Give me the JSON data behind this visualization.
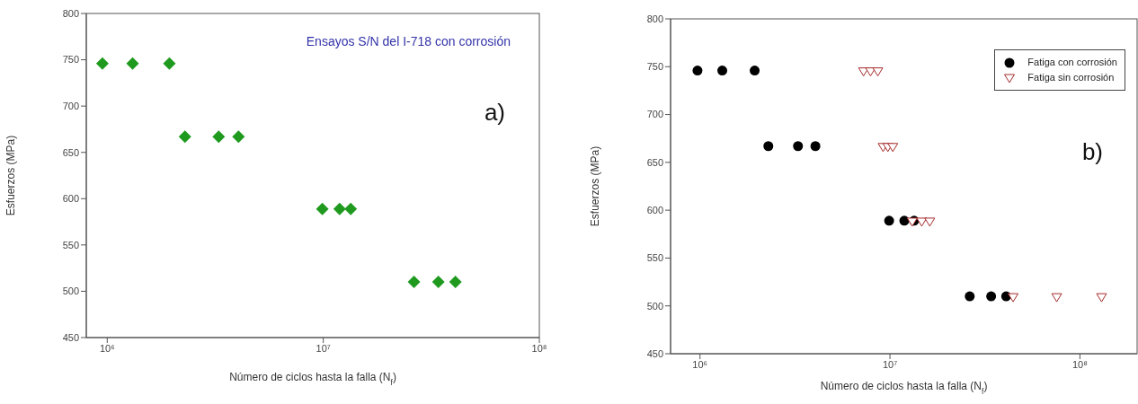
{
  "chart_data": [
    {
      "type": "scatter",
      "xlabel": "Número de ciclos hasta la falla (N$_{f}$)",
      "ylabel": "Esfuerzos (MPa)",
      "log": "x",
      "xlim": [
        800000,
        100000000
      ],
      "xticks": [
        {
          "value": 1000000,
          "label": "10⁶"
        },
        {
          "value": 10000000,
          "label": "10⁷"
        },
        {
          "value": 100000000,
          "label": "10⁸"
        }
      ],
      "ylim": [
        450,
        800
      ],
      "yticks": [
        450,
        500,
        550,
        600,
        650,
        700,
        750,
        800
      ],
      "annotations": [
        "Ensayos S/N del I-718 con corrosión",
        "a)"
      ],
      "series": [
        {
          "color": "#1f9a1f",
          "marker": "diamond",
          "x": [
            950000,
            1310000,
            1940000,
            2290000,
            3280000,
            4050000,
            9900000,
            11900000,
            13400000,
            26300000,
            34100000,
            40900000
          ],
          "values": [
            746,
            746,
            746,
            667,
            667,
            667,
            589,
            589,
            589,
            510,
            510,
            510
          ]
        }
      ]
    },
    {
      "type": "scatter",
      "xlabel": "Número de ciclos hasta la falla (N$_{f}$)",
      "ylabel": "Esfuerzos (MPa)",
      "log": "x",
      "xlim": [
        700000,
        200000000
      ],
      "xticks": [
        {
          "value": 1000000,
          "label": "10⁶"
        },
        {
          "value": 10000000,
          "label": "10⁷"
        },
        {
          "value": 100000000,
          "label": "10⁸"
        }
      ],
      "ylim": [
        450,
        800
      ],
      "yticks": [
        450,
        500,
        550,
        600,
        650,
        700,
        750,
        800
      ],
      "annotations": [
        "b)"
      ],
      "legend": "top right",
      "series": [
        {
          "name": "Fatiga con corrosión",
          "color": "#000000",
          "marker": "circle",
          "x": [
            970000,
            1310000,
            1940000,
            2290000,
            3280000,
            4050000,
            9900000,
            11900000,
            13400000,
            26300000,
            34100000,
            40900000
          ],
          "values": [
            746,
            746,
            746,
            667,
            667,
            667,
            589,
            589,
            589,
            510,
            510,
            510
          ]
        },
        {
          "name": "Fatiga sin corrosión",
          "color": "#a52a2a",
          "marker": "triangle",
          "x": [
            7260000,
            7900000,
            8630000,
            9200000,
            9750000,
            10350000,
            13100000,
            14700000,
            16200000,
            44500000,
            75500000,
            130000000
          ],
          "values": [
            745,
            745,
            745,
            666,
            666,
            666,
            588,
            588,
            588,
            509,
            509,
            509
          ]
        }
      ]
    }
  ]
}
